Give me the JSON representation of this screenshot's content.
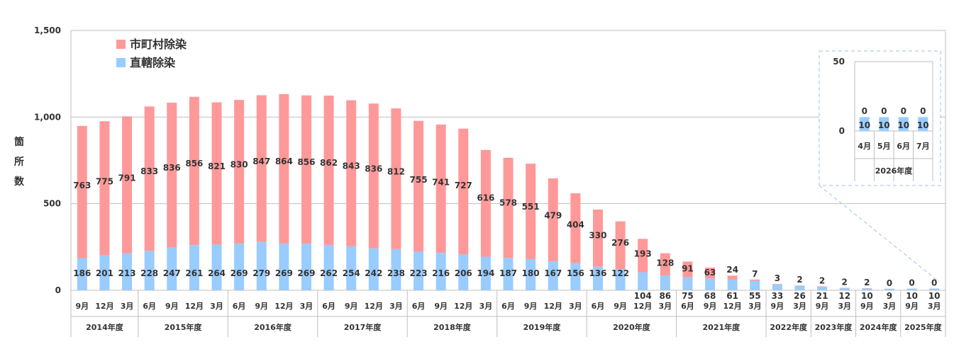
{
  "chart_data": {
    "type": "bar",
    "stacked": true,
    "ylabel_chars": [
      "箇",
      "所",
      "数"
    ],
    "ylim": [
      0,
      1500
    ],
    "yticks": [
      "0",
      "500",
      "1,000",
      "1,500"
    ],
    "ytick_values": [
      0,
      500,
      1000,
      1500
    ],
    "grid": true,
    "legend_position": "top-left",
    "series": [
      {
        "name": "市町村除染",
        "color": "#FF9999",
        "values": [
          763,
          775,
          791,
          833,
          836,
          856,
          821,
          830,
          847,
          864,
          856,
          862,
          843,
          836,
          812,
          755,
          741,
          727,
          616,
          578,
          551,
          479,
          404,
          330,
          276,
          193,
          128,
          91,
          63,
          24,
          7,
          3,
          2,
          2,
          2,
          2,
          0,
          0,
          0
        ]
      },
      {
        "name": "直轄除染",
        "color": "#99CCFF",
        "values": [
          186,
          201,
          213,
          228,
          247,
          261,
          264,
          269,
          279,
          269,
          269,
          262,
          254,
          242,
          238,
          223,
          216,
          206,
          194,
          187,
          180,
          167,
          156,
          136,
          122,
          104,
          86,
          75,
          68,
          61,
          55,
          33,
          26,
          21,
          12,
          10,
          9,
          10,
          10
        ]
      }
    ],
    "months": [
      "9月",
      "12月",
      "3月",
      "6月",
      "9月",
      "12月",
      "3月",
      "6月",
      "9月",
      "12月",
      "3月",
      "6月",
      "9月",
      "12月",
      "3月",
      "6月",
      "9月",
      "12月",
      "3月",
      "6月",
      "9月",
      "12月",
      "3月",
      "6月",
      "9月",
      "12月",
      "3月",
      "6月",
      "9月",
      "12月",
      "3月",
      "9月",
      "3月",
      "9月",
      "3月",
      "9月",
      "3月",
      "9月",
      "3月"
    ],
    "fiscal_years": [
      {
        "label": "2014年度",
        "count": 3
      },
      {
        "label": "2015年度",
        "count": 4
      },
      {
        "label": "2016年度",
        "count": 4
      },
      {
        "label": "2017年度",
        "count": 4
      },
      {
        "label": "2018年度",
        "count": 4
      },
      {
        "label": "2019年度",
        "count": 4
      },
      {
        "label": "2020年度",
        "count": 4
      },
      {
        "label": "2021年度",
        "count": 4
      },
      {
        "label": "2022年度",
        "count": 2
      },
      {
        "label": "2023年度",
        "count": 2
      },
      {
        "label": "2024年度",
        "count": 2
      },
      {
        "label": "2025年度",
        "count": 2
      }
    ],
    "inset": {
      "ylim": [
        0,
        50
      ],
      "yticks": [
        "0",
        "50"
      ],
      "ytick_values": [
        0,
        50
      ],
      "months": [
        "4月",
        "5月",
        "6月",
        "7月"
      ],
      "fiscal_year": "2026年度",
      "series": [
        {
          "name": "市町村除染",
          "values": [
            0,
            0,
            0,
            0
          ]
        },
        {
          "name": "直轄除染",
          "values": [
            10,
            10,
            10,
            10
          ]
        }
      ]
    }
  }
}
